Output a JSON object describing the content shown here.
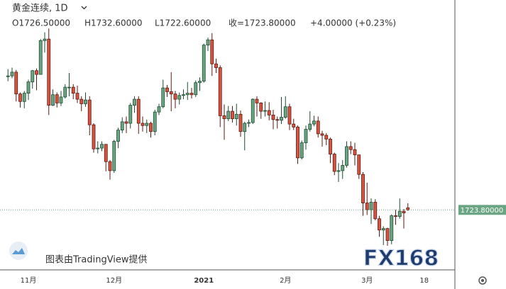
{
  "chart_data": {
    "type": "candlestick",
    "title": "黄金连续, 1D",
    "ohlc_text": [
      "O1726.50000",
      "H1732.60000",
      "L1722.60000",
      "收=1723.80000",
      "+4.00000 (+0.23%)"
    ],
    "attribution": "图表由TradingView提供",
    "watermark": "FX168",
    "categories": [
      null,
      null,
      null,
      null,
      null,
      "11月",
      null,
      null,
      null,
      null,
      null,
      null,
      null,
      null,
      null,
      null,
      null,
      null,
      null,
      null,
      null,
      null,
      null,
      null,
      null,
      null,
      "12月",
      null,
      null,
      null,
      null,
      null,
      null,
      null,
      null,
      null,
      null,
      null,
      null,
      null,
      null,
      null,
      null,
      null,
      null,
      null,
      null,
      null,
      "2021",
      null,
      null,
      null,
      null,
      null,
      null,
      null,
      null,
      null,
      null,
      null,
      null,
      null,
      null,
      null,
      null,
      null,
      null,
      null,
      "2月",
      null,
      null,
      null,
      null,
      null,
      null,
      null,
      null,
      null,
      null,
      null,
      null,
      null,
      null,
      null,
      null,
      null,
      null,
      null,
      "3月",
      null,
      null,
      null,
      null,
      null,
      null,
      null,
      null,
      null,
      null
    ],
    "future_tick_label": "18",
    "open": [
      1902,
      1902,
      1907,
      1878,
      1868,
      1879,
      1894,
      1909,
      1904,
      1949,
      1951,
      1863,
      1877,
      1866,
      1874,
      1887,
      1887,
      1879,
      1871,
      1865,
      1870,
      1837,
      1805,
      1806,
      1811,
      1788,
      1776,
      1815,
      1830,
      1841,
      1839,
      1863,
      1871,
      1839,
      1836,
      1839,
      1828,
      1854,
      1861,
      1886,
      1881,
      1878,
      1871,
      1876,
      1877,
      1879,
      1877,
      1893,
      1895,
      1943,
      1950,
      1918,
      1913,
      1849,
      1845,
      1855,
      1845,
      1851,
      1828,
      1839,
      1840,
      1871,
      1866,
      1855,
      1856,
      1850,
      1844,
      1843,
      1847,
      1861,
      1838,
      1834,
      1793,
      1813,
      1831,
      1838,
      1842,
      1825,
      1823,
      1818,
      1798,
      1775,
      1776,
      1783,
      1808,
      1804,
      1797,
      1771,
      1733,
      1724,
      1734,
      1712,
      1697,
      1699,
      1683,
      1716,
      1715,
      1722,
      1726.5
    ],
    "high": [
      1911,
      1913,
      1910,
      1880,
      1882,
      1897,
      1910,
      1912,
      1951,
      1960,
      1965,
      1884,
      1880,
      1882,
      1891,
      1906,
      1891,
      1889,
      1875,
      1880,
      1875,
      1839,
      1815,
      1815,
      1811,
      1790,
      1817,
      1833,
      1847,
      1848,
      1866,
      1875,
      1875,
      1848,
      1844,
      1841,
      1857,
      1865,
      1897,
      1890,
      1907,
      1882,
      1880,
      1884,
      1894,
      1886,
      1896,
      1900,
      1945,
      1953,
      1959,
      1925,
      1916,
      1864,
      1862,
      1862,
      1865,
      1856,
      1841,
      1844,
      1872,
      1875,
      1867,
      1868,
      1867,
      1857,
      1848,
      1874,
      1875,
      1865,
      1845,
      1836,
      1816,
      1836,
      1855,
      1849,
      1848,
      1829,
      1826,
      1820,
      1800,
      1786,
      1790,
      1815,
      1815,
      1813,
      1797,
      1774,
      1760,
      1739,
      1738,
      1716,
      1702,
      1700,
      1718,
      1724,
      1739,
      1725,
      1732.6
    ],
    "low": [
      1895,
      1899,
      1868,
      1860,
      1859,
      1870,
      1885,
      1883,
      1904,
      1933,
      1850,
      1862,
      1860,
      1862,
      1872,
      1875,
      1871,
      1866,
      1855,
      1861,
      1823,
      1800,
      1799,
      1802,
      1775,
      1764,
      1773,
      1806,
      1826,
      1826,
      1832,
      1853,
      1825,
      1828,
      1826,
      1820,
      1823,
      1850,
      1859,
      1874,
      1855,
      1859,
      1864,
      1871,
      1870,
      1872,
      1874,
      1882,
      1893,
      1935,
      1902,
      1906,
      1834,
      1817,
      1842,
      1840,
      1836,
      1821,
      1803,
      1834,
      1838,
      1848,
      1845,
      1848,
      1843,
      1831,
      1832,
      1838,
      1845,
      1830,
      1830,
      1785,
      1791,
      1804,
      1828,
      1835,
      1820,
      1808,
      1810,
      1786,
      1770,
      1761,
      1765,
      1780,
      1798,
      1783,
      1765,
      1716,
      1717,
      1705,
      1710,
      1688,
      1677,
      1676,
      1678,
      1704,
      1712,
      1699,
      1722.6
    ],
    "close": [
      1902,
      1907,
      1878,
      1868,
      1879,
      1894,
      1909,
      1904,
      1949,
      1951,
      1863,
      1877,
      1866,
      1874,
      1887,
      1887,
      1879,
      1871,
      1865,
      1870,
      1837,
      1805,
      1806,
      1811,
      1788,
      1776,
      1815,
      1830,
      1841,
      1839,
      1863,
      1871,
      1839,
      1836,
      1839,
      1828,
      1854,
      1861,
      1886,
      1881,
      1878,
      1871,
      1876,
      1877,
      1879,
      1877,
      1893,
      1895,
      1943,
      1950,
      1918,
      1913,
      1849,
      1845,
      1855,
      1845,
      1851,
      1828,
      1839,
      1840,
      1871,
      1866,
      1855,
      1856,
      1850,
      1844,
      1843,
      1847,
      1861,
      1838,
      1834,
      1793,
      1813,
      1831,
      1838,
      1842,
      1825,
      1823,
      1818,
      1798,
      1775,
      1776,
      1783,
      1808,
      1804,
      1797,
      1771,
      1733,
      1724,
      1734,
      1712,
      1697,
      1699,
      1683,
      1716,
      1715,
      1722,
      1719.8,
      1723.8
    ],
    "up_color": "#6ba583",
    "down_color": "#d75442",
    "last_price": {
      "value": 1723.8,
      "label": "1723.80000"
    },
    "last_price_color": "#6ba583",
    "ylim": [
      1644,
      2003
    ]
  }
}
